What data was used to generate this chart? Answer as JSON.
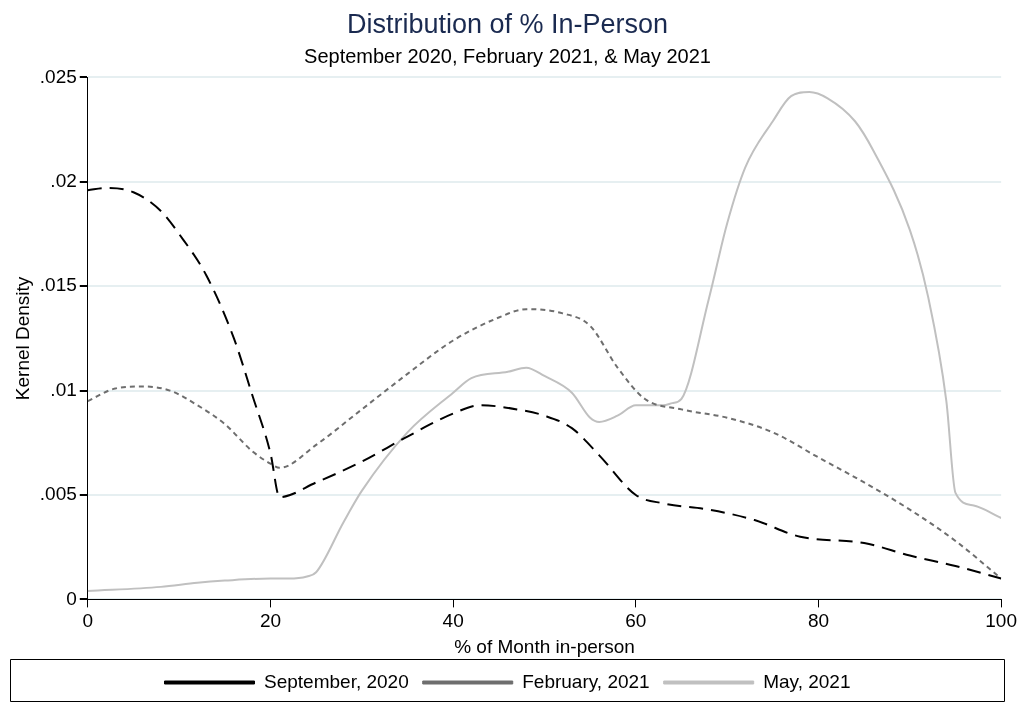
{
  "chart_data": {
    "type": "line",
    "title": "Distribution of % In-Person",
    "subtitle": "September 2020, February 2021, & May 2021",
    "xlabel": "% of Month in-person",
    "ylabel": "Kernel Density",
    "xlim": [
      0,
      100
    ],
    "xticks": [
      0,
      20,
      40,
      60,
      80,
      100
    ],
    "ylim": [
      0,
      0.025
    ],
    "yticks": [
      {
        "value": 0,
        "label": "0"
      },
      {
        "value": 0.005,
        "label": ".005"
      },
      {
        "value": 0.01,
        "label": ".01"
      },
      {
        "value": 0.015,
        "label": ".015"
      },
      {
        "value": 0.02,
        "label": ".02"
      },
      {
        "value": 0.025,
        "label": ".025"
      }
    ],
    "grid": "y",
    "legend": "bottom",
    "marker": "none",
    "series": [
      {
        "name": "September, 2020",
        "color": "#000000",
        "line_style": "dashed",
        "x": [
          0,
          2,
          5,
          8,
          10,
          13,
          16,
          18,
          20,
          21,
          25,
          30,
          35,
          40,
          43,
          47,
          50,
          53,
          56,
          60,
          63,
          68,
          73,
          78,
          85,
          90,
          95,
          100
        ],
        "values": [
          0.0196,
          0.0197,
          0.0195,
          0.0186,
          0.0175,
          0.0155,
          0.0125,
          0.0098,
          0.007,
          0.0049,
          0.0056,
          0.0066,
          0.0078,
          0.0089,
          0.0093,
          0.0091,
          0.0088,
          0.0082,
          0.0069,
          0.005,
          0.0046,
          0.0043,
          0.0038,
          0.003,
          0.0027,
          0.0021,
          0.0016,
          0.001
        ]
      },
      {
        "name": "February, 2021",
        "color": "#6e6e6e",
        "line_style": "dotted",
        "x": [
          0,
          3,
          6,
          9,
          12,
          15,
          18,
          20,
          21,
          25,
          30,
          35,
          40,
          45,
          48,
          52,
          55,
          58,
          61,
          65,
          70,
          75,
          80,
          85,
          90,
          95,
          100
        ],
        "values": [
          0.0095,
          0.0101,
          0.0102,
          0.01,
          0.0093,
          0.0084,
          0.0071,
          0.0065,
          0.0063,
          0.0074,
          0.0091,
          0.0108,
          0.0124,
          0.0135,
          0.0139,
          0.0137,
          0.0131,
          0.0111,
          0.0096,
          0.0091,
          0.0087,
          0.008,
          0.0068,
          0.0056,
          0.0043,
          0.0028,
          0.001
        ]
      },
      {
        "name": "May, 2021",
        "color": "#c0c0c0",
        "line_style": "solid",
        "x": [
          0,
          8,
          12,
          15,
          20,
          22,
          24,
          25,
          28,
          30,
          35,
          40,
          42,
          46,
          48,
          50,
          53,
          55,
          56,
          58,
          60,
          63,
          64,
          65,
          68,
          70,
          72,
          75,
          77,
          79,
          81,
          84,
          86,
          90,
          92,
          94,
          95,
          97,
          100
        ],
        "values": [
          0.0004,
          0.0006,
          0.0008,
          0.0009,
          0.001,
          0.001,
          0.0011,
          0.0013,
          0.0037,
          0.0052,
          0.008,
          0.0099,
          0.0106,
          0.0109,
          0.0111,
          0.0107,
          0.0099,
          0.0087,
          0.0085,
          0.0088,
          0.0093,
          0.0093,
          0.0094,
          0.0096,
          0.0144,
          0.018,
          0.0207,
          0.0229,
          0.0241,
          0.0243,
          0.024,
          0.0229,
          0.0215,
          0.0177,
          0.0145,
          0.0095,
          0.0051,
          0.0045,
          0.0039
        ]
      }
    ]
  }
}
